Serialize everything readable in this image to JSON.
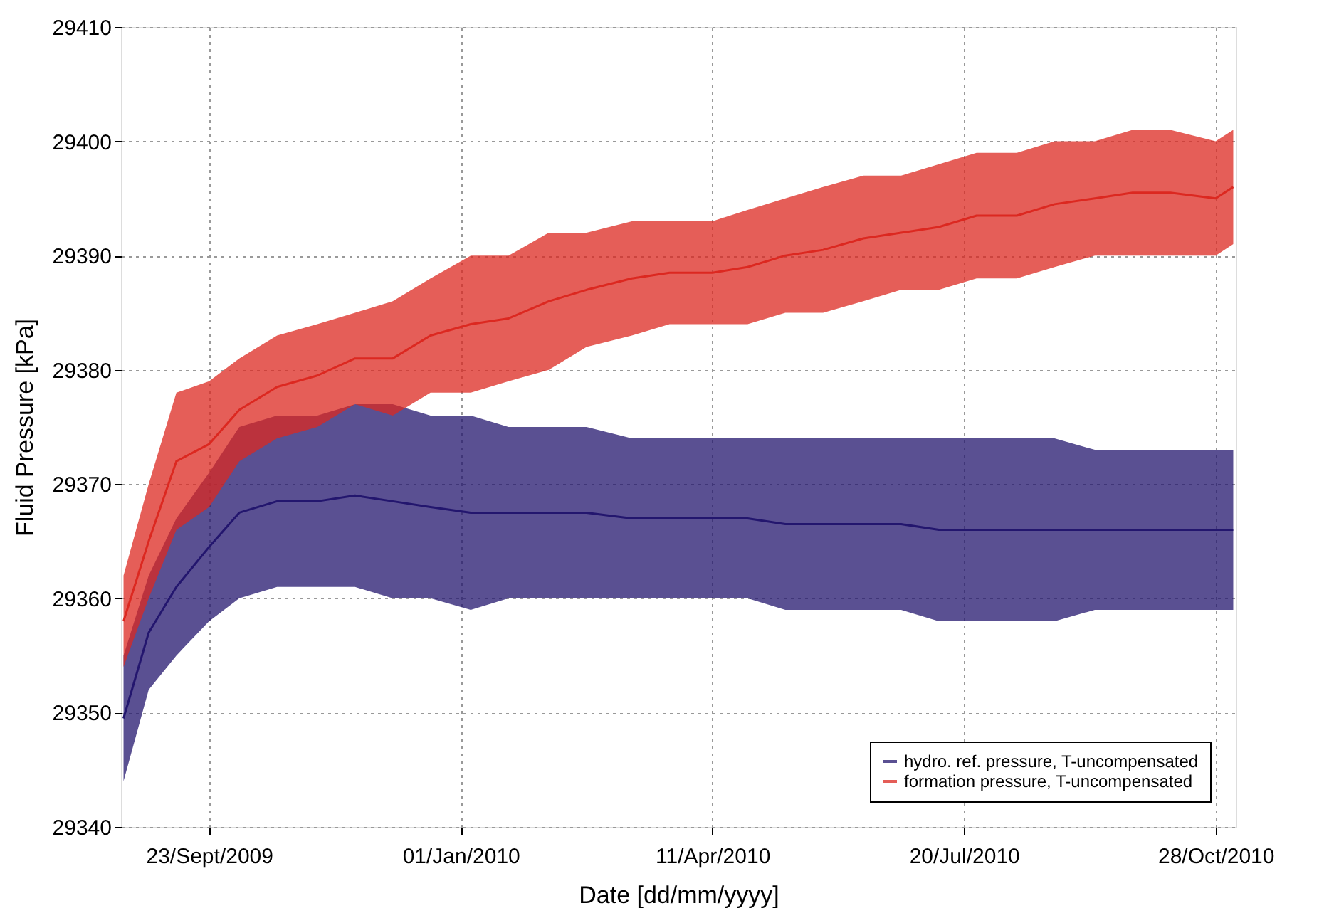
{
  "chart_data": {
    "type": "line",
    "xlabel": "Date [dd/mm/yyyy]",
    "ylabel": "Fluid Pressure [kPa]",
    "x": [
      "2009-08-20",
      "2009-08-30",
      "2009-09-10",
      "2009-09-23",
      "2009-10-05",
      "2009-10-20",
      "2009-11-05",
      "2009-11-20",
      "2009-12-05",
      "2009-12-20",
      "2010-01-05",
      "2010-01-20",
      "2010-02-05",
      "2010-02-20",
      "2010-03-10",
      "2010-03-25",
      "2010-04-11",
      "2010-04-25",
      "2010-05-10",
      "2010-05-25",
      "2010-06-10",
      "2010-06-25",
      "2010-07-10",
      "2010-07-25",
      "2010-08-10",
      "2010-08-25",
      "2010-09-10",
      "2010-09-25",
      "2010-10-10",
      "2010-10-28",
      "2010-11-04"
    ],
    "series": [
      {
        "name": "hydro. ref. pressure, T-uncompensated",
        "color": "#23166e",
        "values": [
          29349.5,
          29357,
          29361,
          29364.5,
          29367.5,
          29368.5,
          29368.5,
          29369,
          29368.5,
          29368,
          29367.5,
          29367.5,
          29367.5,
          29367.5,
          29367,
          29367,
          29367,
          29367,
          29366.5,
          29366.5,
          29366.5,
          29366.5,
          29366,
          29366,
          29366,
          29366,
          29366,
          29366,
          29366,
          29366,
          29366
        ],
        "lower": [
          29344,
          29352,
          29355,
          29358,
          29360,
          29361,
          29361,
          29361,
          29360,
          29360,
          29359,
          29360,
          29360,
          29360,
          29360,
          29360,
          29360,
          29360,
          29359,
          29359,
          29359,
          29359,
          29358,
          29358,
          29358,
          29358,
          29359,
          29359,
          29359,
          29359,
          29359
        ],
        "upper": [
          29355,
          29362,
          29367,
          29371,
          29375,
          29376,
          29376,
          29377,
          29377,
          29376,
          29376,
          29375,
          29375,
          29375,
          29374,
          29374,
          29374,
          29374,
          29374,
          29374,
          29374,
          29374,
          29374,
          29374,
          29374,
          29374,
          29373,
          29373,
          29373,
          29373,
          29373
        ]
      },
      {
        "name": "formation pressure, T-uncompensated",
        "color": "#dc2820",
        "values": [
          29358,
          29365,
          29372,
          29373.5,
          29376.5,
          29378.5,
          29379.5,
          29381,
          29381,
          29383,
          29384,
          29384.5,
          29386,
          29387,
          29388,
          29388.5,
          29388.5,
          29389,
          29390,
          29390.5,
          29391.5,
          29392,
          29392.5,
          29393.5,
          29393.5,
          29394.5,
          29395,
          29395.5,
          29395.5,
          29395,
          29396
        ],
        "lower": [
          29354,
          29360,
          29366,
          29368,
          29372,
          29374,
          29375,
          29377,
          29376,
          29378,
          29378,
          29379,
          29380,
          29382,
          29383,
          29384,
          29384,
          29384,
          29385,
          29385,
          29386,
          29387,
          29387,
          29388,
          29388,
          29389,
          29390,
          29390,
          29390,
          29390,
          29391
        ],
        "upper": [
          29362,
          29370,
          29378,
          29379,
          29381,
          29383,
          29384,
          29385,
          29386,
          29388,
          29390,
          29390,
          29392,
          29392,
          29393,
          29393,
          29393,
          29394,
          29395,
          29396,
          29397,
          29397,
          29398,
          29399,
          29399,
          29400,
          29400,
          29401,
          29401,
          29400,
          29401
        ]
      }
    ],
    "xlim": [
      "2009-08-19",
      "2010-11-05"
    ],
    "xticks": [
      {
        "value": "2009-09-23",
        "label": "23/Sept/2009"
      },
      {
        "value": "2010-01-01",
        "label": "01/Jan/2010"
      },
      {
        "value": "2010-04-11",
        "label": "11/Apr/2010"
      },
      {
        "value": "2010-07-20",
        "label": "20/Jul/2010"
      },
      {
        "value": "2010-10-28",
        "label": "28/Oct/2010"
      }
    ],
    "ylim": [
      29340,
      29410
    ],
    "yticks": [
      29340,
      29350,
      29360,
      29370,
      29380,
      29390,
      29400,
      29410
    ],
    "grid": true,
    "legend": "bottom right",
    "line_style": "solid",
    "marker": "none"
  }
}
